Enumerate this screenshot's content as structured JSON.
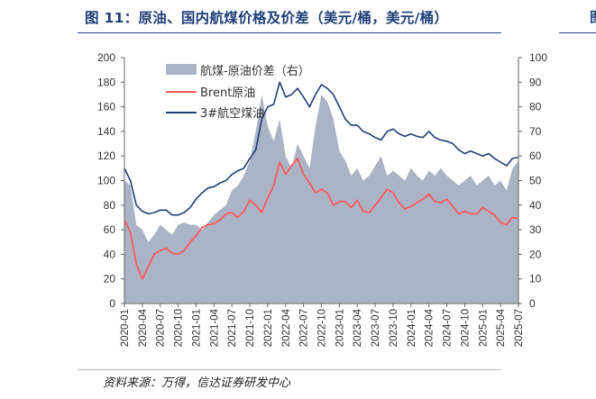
{
  "figure": {
    "title": "图 11：原油、国内航煤价格及价差（美元/桶，美元/桶）",
    "right_clip": "图",
    "source": "资料来源：万得，信达证券研发中心"
  },
  "chart_data": {
    "type": "line",
    "title": "",
    "legend_placement": "top-left",
    "y_left": {
      "min": 0,
      "max": 200,
      "ticks": [
        0,
        20,
        40,
        60,
        80,
        100,
        120,
        140,
        160,
        180,
        200
      ]
    },
    "y_right": {
      "min": 0,
      "max": 100,
      "ticks": [
        0,
        10,
        20,
        30,
        40,
        50,
        60,
        70,
        80,
        90,
        100
      ]
    },
    "x_ticks": [
      "2020-01",
      "2020-04",
      "2020-07",
      "2020-10",
      "2021-01",
      "2021-04",
      "2021-07",
      "2021-10",
      "2022-01",
      "2022-04",
      "2022-07",
      "2022-10",
      "2023-01",
      "2023-04",
      "2023-07",
      "2023-10",
      "2024-01",
      "2024-04",
      "2024-07",
      "2024-10",
      "2025-01",
      "2025-04",
      "2025-07"
    ],
    "series": [
      {
        "name": "航煤-原油价差（右）",
        "type": "area",
        "axis": "right",
        "color": "#aab4c6",
        "points": [
          [
            "2020-01",
            50
          ],
          [
            "2020-02",
            48
          ],
          [
            "2020-03",
            32
          ],
          [
            "2020-04",
            30
          ],
          [
            "2020-05",
            25
          ],
          [
            "2020-06",
            28
          ],
          [
            "2020-07",
            32
          ],
          [
            "2020-08",
            30
          ],
          [
            "2020-09",
            28
          ],
          [
            "2020-10",
            32
          ],
          [
            "2020-11",
            33
          ],
          [
            "2020-12",
            32
          ],
          [
            "2021-01",
            32
          ],
          [
            "2021-02",
            30
          ],
          [
            "2021-03",
            33
          ],
          [
            "2021-04",
            36
          ],
          [
            "2021-05",
            38
          ],
          [
            "2021-06",
            40
          ],
          [
            "2021-07",
            46
          ],
          [
            "2021-08",
            48
          ],
          [
            "2021-09",
            52
          ],
          [
            "2021-10",
            58
          ],
          [
            "2021-11",
            70
          ],
          [
            "2021-12",
            85
          ],
          [
            "2022-01",
            72
          ],
          [
            "2022-02",
            66
          ],
          [
            "2022-03",
            75
          ],
          [
            "2022-04",
            60
          ],
          [
            "2022-05",
            55
          ],
          [
            "2022-06",
            65
          ],
          [
            "2022-07",
            60
          ],
          [
            "2022-08",
            55
          ],
          [
            "2022-09",
            72
          ],
          [
            "2022-10",
            85
          ],
          [
            "2022-11",
            82
          ],
          [
            "2022-12",
            75
          ],
          [
            "2023-01",
            62
          ],
          [
            "2023-02",
            58
          ],
          [
            "2023-03",
            52
          ],
          [
            "2023-04",
            55
          ],
          [
            "2023-05",
            50
          ],
          [
            "2023-06",
            52
          ],
          [
            "2023-07",
            56
          ],
          [
            "2023-08",
            60
          ],
          [
            "2023-09",
            52
          ],
          [
            "2023-10",
            54
          ],
          [
            "2023-11",
            52
          ],
          [
            "2023-12",
            50
          ],
          [
            "2024-01",
            55
          ],
          [
            "2024-02",
            52
          ],
          [
            "2024-03",
            50
          ],
          [
            "2024-04",
            54
          ],
          [
            "2024-05",
            52
          ],
          [
            "2024-06",
            55
          ],
          [
            "2024-07",
            52
          ],
          [
            "2024-08",
            50
          ],
          [
            "2024-09",
            48
          ],
          [
            "2024-10",
            50
          ],
          [
            "2024-11",
            52
          ],
          [
            "2024-12",
            48
          ],
          [
            "2025-01",
            50
          ],
          [
            "2025-02",
            52
          ],
          [
            "2025-03",
            48
          ],
          [
            "2025-04",
            50
          ],
          [
            "2025-05",
            46
          ],
          [
            "2025-06",
            55
          ],
          [
            "2025-07",
            58
          ]
        ]
      },
      {
        "name": "Brent原油",
        "type": "line",
        "axis": "left",
        "color": "#ff5a5a",
        "points": [
          [
            "2020-01",
            68
          ],
          [
            "2020-02",
            58
          ],
          [
            "2020-03",
            32
          ],
          [
            "2020-04",
            20
          ],
          [
            "2020-05",
            30
          ],
          [
            "2020-06",
            40
          ],
          [
            "2020-07",
            43
          ],
          [
            "2020-08",
            45
          ],
          [
            "2020-09",
            41
          ],
          [
            "2020-10",
            40
          ],
          [
            "2020-11",
            43
          ],
          [
            "2020-12",
            50
          ],
          [
            "2021-01",
            55
          ],
          [
            "2021-02",
            62
          ],
          [
            "2021-03",
            64
          ],
          [
            "2021-04",
            65
          ],
          [
            "2021-05",
            68
          ],
          [
            "2021-06",
            73
          ],
          [
            "2021-07",
            74
          ],
          [
            "2021-08",
            70
          ],
          [
            "2021-09",
            75
          ],
          [
            "2021-10",
            84
          ],
          [
            "2021-11",
            80
          ],
          [
            "2021-12",
            74
          ],
          [
            "2022-01",
            86
          ],
          [
            "2022-02",
            96
          ],
          [
            "2022-03",
            115
          ],
          [
            "2022-04",
            105
          ],
          [
            "2022-05",
            112
          ],
          [
            "2022-06",
            118
          ],
          [
            "2022-07",
            105
          ],
          [
            "2022-08",
            98
          ],
          [
            "2022-09",
            90
          ],
          [
            "2022-10",
            93
          ],
          [
            "2022-11",
            90
          ],
          [
            "2022-12",
            80
          ],
          [
            "2023-01",
            83
          ],
          [
            "2023-02",
            83
          ],
          [
            "2023-03",
            78
          ],
          [
            "2023-04",
            84
          ],
          [
            "2023-05",
            75
          ],
          [
            "2023-06",
            74
          ],
          [
            "2023-07",
            80
          ],
          [
            "2023-08",
            86
          ],
          [
            "2023-09",
            93
          ],
          [
            "2023-10",
            90
          ],
          [
            "2023-11",
            82
          ],
          [
            "2023-12",
            77
          ],
          [
            "2024-01",
            79
          ],
          [
            "2024-02",
            82
          ],
          [
            "2024-03",
            85
          ],
          [
            "2024-04",
            89
          ],
          [
            "2024-05",
            83
          ],
          [
            "2024-06",
            82
          ],
          [
            "2024-07",
            85
          ],
          [
            "2024-08",
            79
          ],
          [
            "2024-09",
            73
          ],
          [
            "2024-10",
            75
          ],
          [
            "2024-11",
            73
          ],
          [
            "2024-12",
            73
          ],
          [
            "2025-01",
            78
          ],
          [
            "2025-02",
            75
          ],
          [
            "2025-03",
            72
          ],
          [
            "2025-04",
            66
          ],
          [
            "2025-05",
            64
          ],
          [
            "2025-06",
            70
          ],
          [
            "2025-07",
            69
          ]
        ]
      },
      {
        "name": "3#航空煤油",
        "type": "line",
        "axis": "left",
        "color": "#1f3f79",
        "points": [
          [
            "2020-01",
            110
          ],
          [
            "2020-02",
            100
          ],
          [
            "2020-03",
            80
          ],
          [
            "2020-04",
            75
          ],
          [
            "2020-05",
            73
          ],
          [
            "2020-06",
            74
          ],
          [
            "2020-07",
            76
          ],
          [
            "2020-08",
            76
          ],
          [
            "2020-09",
            72
          ],
          [
            "2020-10",
            72
          ],
          [
            "2020-11",
            74
          ],
          [
            "2020-12",
            78
          ],
          [
            "2021-01",
            85
          ],
          [
            "2021-02",
            90
          ],
          [
            "2021-03",
            94
          ],
          [
            "2021-04",
            95
          ],
          [
            "2021-05",
            98
          ],
          [
            "2021-06",
            100
          ],
          [
            "2021-07",
            105
          ],
          [
            "2021-08",
            108
          ],
          [
            "2021-09",
            110
          ],
          [
            "2021-10",
            118
          ],
          [
            "2021-11",
            125
          ],
          [
            "2021-12",
            150
          ],
          [
            "2022-01",
            160
          ],
          [
            "2022-02",
            162
          ],
          [
            "2022-03",
            180
          ],
          [
            "2022-04",
            168
          ],
          [
            "2022-05",
            170
          ],
          [
            "2022-06",
            175
          ],
          [
            "2022-07",
            168
          ],
          [
            "2022-08",
            160
          ],
          [
            "2022-09",
            170
          ],
          [
            "2022-10",
            178
          ],
          [
            "2022-11",
            175
          ],
          [
            "2022-12",
            170
          ],
          [
            "2023-01",
            160
          ],
          [
            "2023-02",
            150
          ],
          [
            "2023-03",
            145
          ],
          [
            "2023-04",
            145
          ],
          [
            "2023-05",
            140
          ],
          [
            "2023-06",
            138
          ],
          [
            "2023-07",
            135
          ],
          [
            "2023-08",
            133
          ],
          [
            "2023-09",
            140
          ],
          [
            "2023-10",
            142
          ],
          [
            "2023-11",
            138
          ],
          [
            "2023-12",
            136
          ],
          [
            "2024-01",
            138
          ],
          [
            "2024-02",
            136
          ],
          [
            "2024-03",
            135
          ],
          [
            "2024-04",
            140
          ],
          [
            "2024-05",
            135
          ],
          [
            "2024-06",
            133
          ],
          [
            "2024-07",
            132
          ],
          [
            "2024-08",
            130
          ],
          [
            "2024-09",
            125
          ],
          [
            "2024-10",
            122
          ],
          [
            "2024-11",
            124
          ],
          [
            "2024-12",
            122
          ],
          [
            "2025-01",
            120
          ],
          [
            "2025-02",
            122
          ],
          [
            "2025-03",
            118
          ],
          [
            "2025-04",
            115
          ],
          [
            "2025-05",
            112
          ],
          [
            "2025-06",
            118
          ],
          [
            "2025-07",
            119
          ]
        ]
      }
    ]
  }
}
